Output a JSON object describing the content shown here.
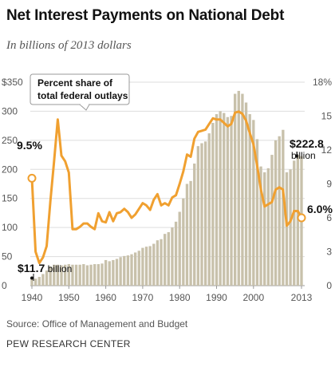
{
  "title": "Net Interest Payments on National Debt",
  "subtitle": "In billions of 2013 dollars",
  "source": "Source: Office of Management and Budget",
  "org": "PEW RESEARCH CENTER",
  "colors": {
    "bars": "#c8c1ab",
    "line": "#f0a030",
    "grid": "#dddddd"
  },
  "chart_data": {
    "type": "bar+line",
    "x": [
      1940,
      1941,
      1942,
      1943,
      1944,
      1945,
      1946,
      1947,
      1948,
      1949,
      1950,
      1951,
      1952,
      1953,
      1954,
      1955,
      1956,
      1957,
      1958,
      1959,
      1960,
      1961,
      1962,
      1963,
      1964,
      1965,
      1966,
      1967,
      1968,
      1969,
      1970,
      1971,
      1972,
      1973,
      1974,
      1975,
      1976,
      1977,
      1978,
      1979,
      1980,
      1981,
      1982,
      1983,
      1984,
      1985,
      1986,
      1987,
      1988,
      1989,
      1990,
      1991,
      1992,
      1993,
      1994,
      1995,
      1996,
      1997,
      1998,
      1999,
      2000,
      2001,
      2002,
      2003,
      2004,
      2005,
      2006,
      2007,
      2008,
      2009,
      2010,
      2011,
      2012,
      2013
    ],
    "xticks": [
      "1940",
      "1950",
      "1960",
      "1970",
      "1980",
      "1990",
      "2000",
      "2013"
    ],
    "xtick_values": [
      1940,
      1950,
      1960,
      1970,
      1980,
      1990,
      2000,
      2013
    ],
    "xlim": [
      1940,
      2013
    ],
    "y_left": {
      "ticks": [
        "$350",
        "300",
        "250",
        "200",
        "150",
        "100",
        "50",
        "0"
      ],
      "tick_values": [
        350,
        300,
        250,
        200,
        150,
        100,
        50,
        0
      ],
      "range": [
        0,
        350
      ]
    },
    "y_right": {
      "ticks": [
        "18%",
        "15",
        "12",
        "9",
        "6",
        "3",
        "0"
      ],
      "tick_values": [
        18,
        15,
        12,
        9,
        6,
        3,
        0
      ],
      "range": [
        0,
        18
      ]
    },
    "series": [
      {
        "name": "Net interest payments",
        "axis": "left",
        "values": [
          11.7,
          12,
          15,
          20,
          26,
          33,
          36,
          36,
          35,
          36,
          37,
          36,
          36,
          36,
          37,
          35,
          36,
          37,
          37,
          38,
          44,
          42,
          44,
          46,
          49,
          51,
          52,
          54,
          57,
          60,
          65,
          67,
          68,
          72,
          78,
          80,
          89,
          92,
          100,
          110,
          127,
          150,
          175,
          180,
          210,
          240,
          245,
          248,
          262,
          280,
          295,
          300,
          297,
          290,
          292,
          330,
          335,
          330,
          315,
          295,
          285,
          252,
          205,
          195,
          202,
          225,
          250,
          257,
          268,
          195,
          200,
          215,
          225,
          222.8
        ]
      },
      {
        "name": "Percent share of total federal outlays",
        "axis": "right",
        "values": [
          9.5,
          3,
          2,
          2.5,
          3.5,
          7.5,
          11,
          14.7,
          11.5,
          11,
          10,
          5,
          5,
          5.2,
          5.5,
          5.5,
          5.2,
          5,
          6.4,
          5.7,
          5.6,
          6.5,
          5.7,
          6.4,
          6.5,
          6.8,
          6.5,
          6,
          6.3,
          6.8,
          7.3,
          7.1,
          6.7,
          7.6,
          8.1,
          7.1,
          7.3,
          7.1,
          7.8,
          8,
          9,
          10.1,
          11.6,
          11.4,
          13,
          13.6,
          13.7,
          13.8,
          14.3,
          14.8,
          14.7,
          14.7,
          14.4,
          14.1,
          14.3,
          15.3,
          15.4,
          15.2,
          14.6,
          13.5,
          12.5,
          10.6,
          8.5,
          7,
          7.2,
          7.4,
          8.5,
          8.7,
          8.5,
          5.3,
          5.7,
          6.6,
          6.6,
          6
        ]
      }
    ],
    "annotations": {
      "callout_line1": "Percent share of",
      "callout_line2": "total federal outlays",
      "start_pct": "9.5%",
      "start_value": "$11.7",
      "start_value_unit": " billion",
      "end_value": "$222.8",
      "end_value_unit": "billion",
      "end_pct": "6.0%"
    }
  }
}
